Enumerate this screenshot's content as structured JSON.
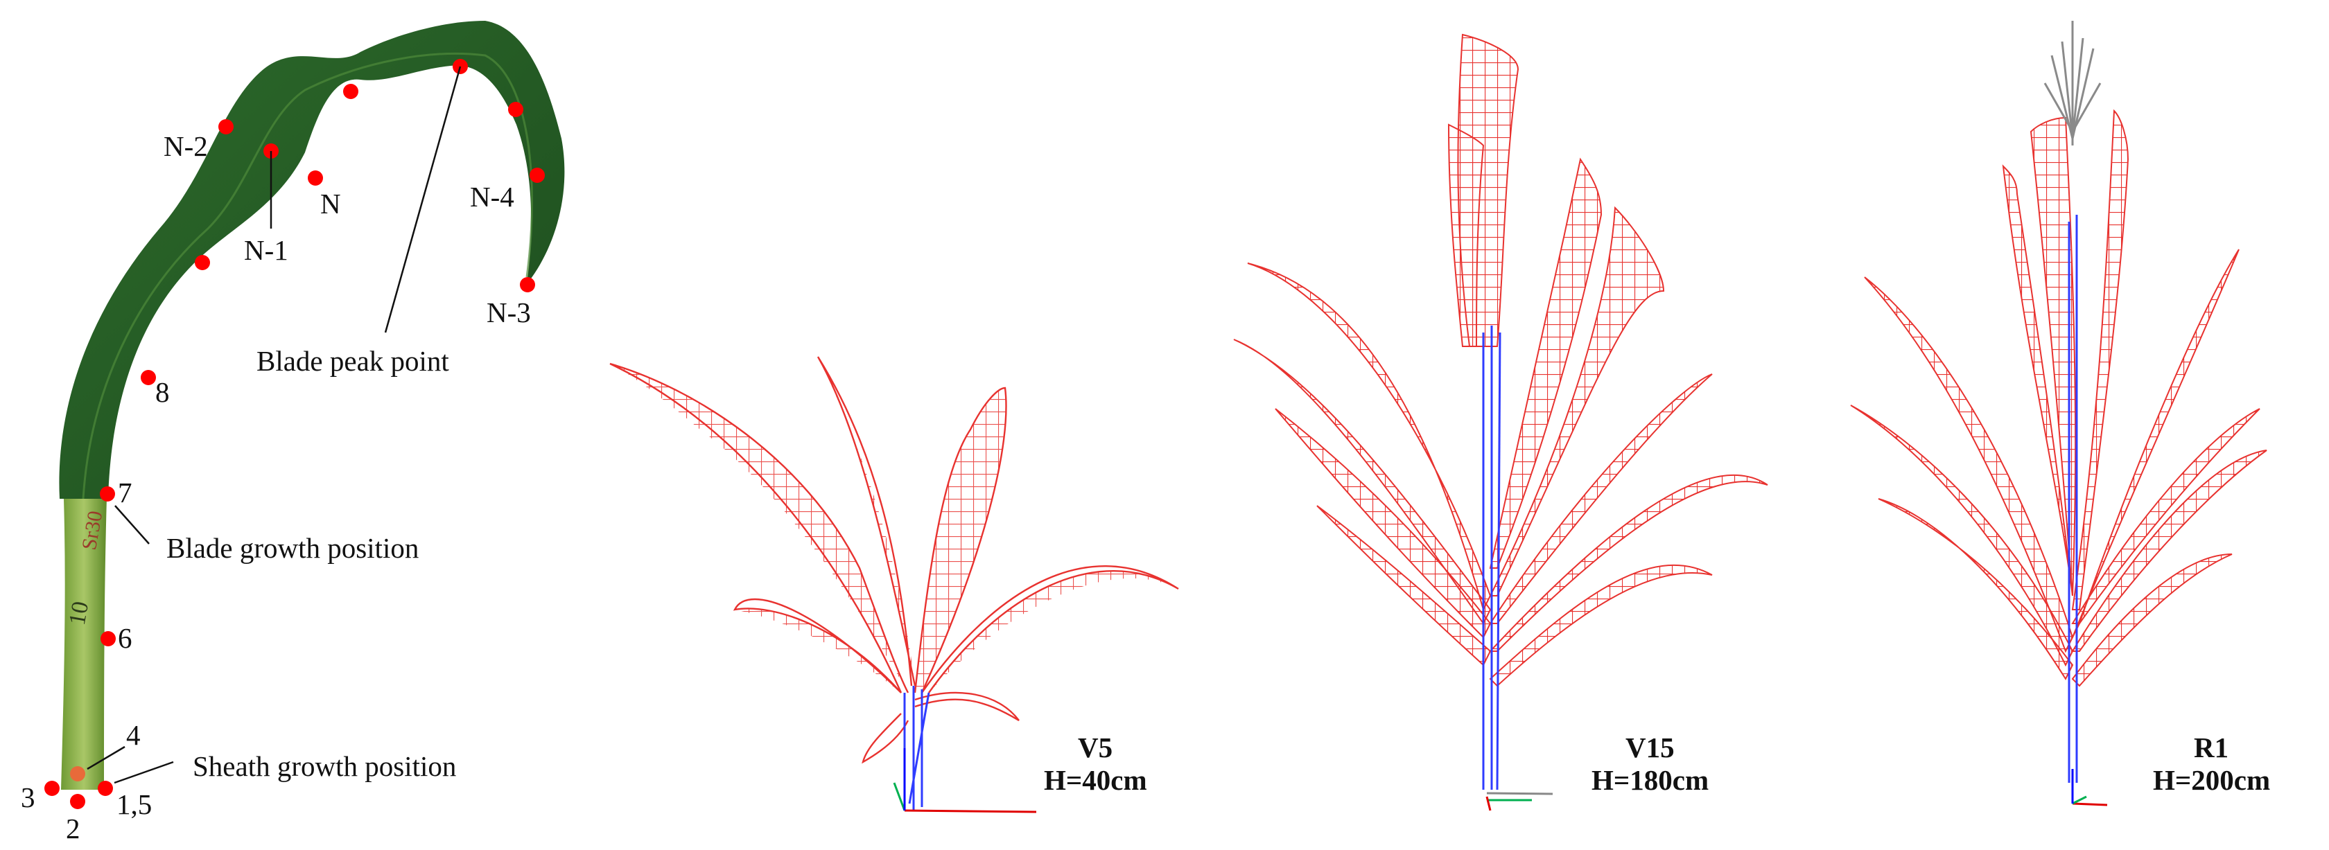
{
  "leaf_panel": {
    "point_labels": {
      "n_minus_2": "N-2",
      "n_minus_1": "N-1",
      "n": "N",
      "n_minus_4": "N-4",
      "n_minus_3": "N-3",
      "p8": "8",
      "p7": "7",
      "p6": "6",
      "p4": "4",
      "p3": "3",
      "p2": "2",
      "p1_5": "1,5"
    },
    "annotations": {
      "blade_peak": "Blade peak point",
      "blade_growth": "Blade growth position",
      "sheath_growth": "Sheath growth position"
    },
    "stem_marks": [
      "10",
      "Sr30"
    ]
  },
  "stages": [
    {
      "stage": "V5",
      "height": "H=40cm"
    },
    {
      "stage": "V15",
      "height": "H=180cm"
    },
    {
      "stage": "R1",
      "height": "H=200cm"
    }
  ],
  "colors": {
    "leaf_mesh": "#e8322f",
    "stem_mesh": "#2f3cff",
    "tassel_mesh": "#8a8a8a",
    "axis_x": "#e00000",
    "axis_y": "#00b050",
    "axis_z": "#0000ff",
    "keypoint": "#ff0000",
    "leaf_blade": "#2f6b2d",
    "leaf_sheath": "#8fb24a"
  }
}
